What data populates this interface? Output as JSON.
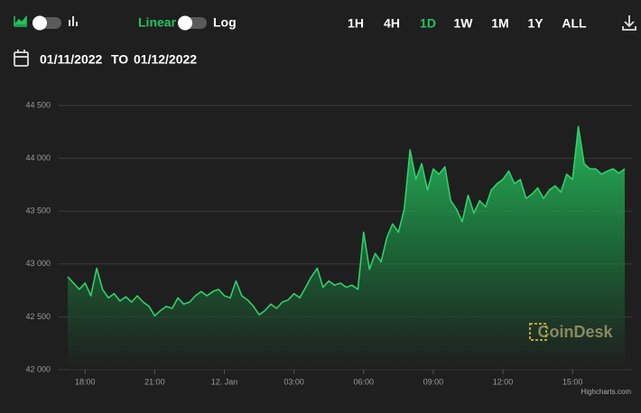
{
  "controls": {
    "scale_options": [
      "Linear",
      "Log"
    ],
    "ranges": [
      "1H",
      "4H",
      "1D",
      "1W",
      "1M",
      "1Y",
      "ALL"
    ],
    "date_from": "01/11/2022",
    "date_separator": "TO",
    "date_to": "01/12/2022"
  },
  "chart_data": {
    "type": "area",
    "color": "#2ed16a",
    "grid": true,
    "values": [
      42880,
      42820,
      42760,
      42820,
      42700,
      42960,
      42760,
      42680,
      42720,
      42650,
      42690,
      42640,
      42700,
      42640,
      42600,
      42510,
      42560,
      42600,
      42580,
      42680,
      42620,
      42640,
      42700,
      42740,
      42700,
      42740,
      42760,
      42700,
      42680,
      42840,
      42700,
      42660,
      42600,
      42520,
      42560,
      42620,
      42580,
      42640,
      42660,
      42720,
      42680,
      42780,
      42880,
      42960,
      42780,
      42840,
      42800,
      42820,
      42780,
      42800,
      42760,
      43300,
      42950,
      43100,
      43020,
      43250,
      43380,
      43300,
      43520,
      44080,
      43800,
      43950,
      43700,
      43900,
      43850,
      43920,
      43600,
      43520,
      43400,
      43650,
      43480,
      43600,
      43540,
      43700,
      43760,
      43800,
      43880,
      43760,
      43800,
      43620,
      43660,
      43720,
      43620,
      43700,
      43740,
      43680,
      43850,
      43800,
      44300,
      43950,
      43900,
      43900,
      43850,
      43880,
      43900,
      43860,
      43900
    ],
    "xlim": [
      0,
      96
    ],
    "xticks": [
      {
        "value": 3,
        "label": "18:00"
      },
      {
        "value": 15,
        "label": "21:00"
      },
      {
        "value": 27,
        "label": "12. Jan"
      },
      {
        "value": 39,
        "label": "03:00"
      },
      {
        "value": 51,
        "label": "06:00"
      },
      {
        "value": 63,
        "label": "09:00"
      },
      {
        "value": 75,
        "label": "12:00"
      },
      {
        "value": 87,
        "label": "15:00"
      }
    ],
    "ylim": [
      42000,
      44500
    ],
    "yticks": [
      {
        "value": 42000,
        "label": "42 000"
      },
      {
        "value": 42500,
        "label": "42 500"
      },
      {
        "value": 43000,
        "label": "43 000"
      },
      {
        "value": 43500,
        "label": "43 500"
      },
      {
        "value": 44000,
        "label": "44 000"
      },
      {
        "value": 44500,
        "label": "44 500"
      }
    ],
    "watermark": "CoinDesk",
    "credit": "Highcharts.com"
  }
}
